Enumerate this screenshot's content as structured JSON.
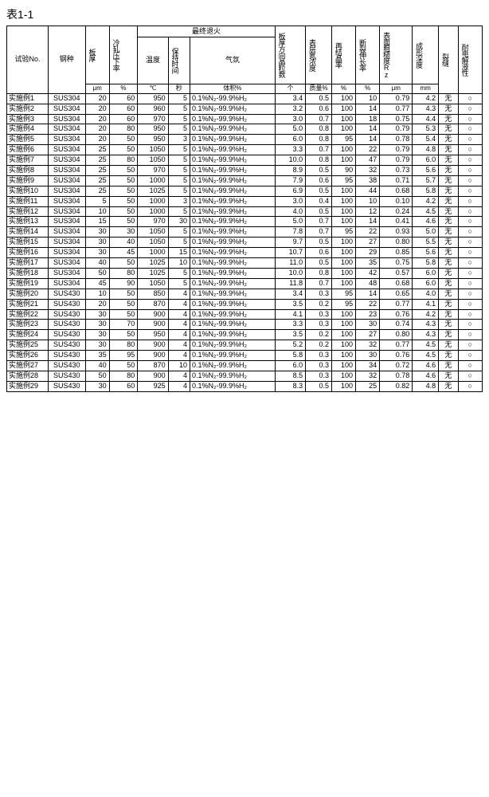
{
  "table_title": "表1-1",
  "headers": {
    "no": "试验No.",
    "steel": "钢种",
    "thickness": "板厚",
    "cold_reduction": "冷轧压下率",
    "final_anneal": "最终退火",
    "temp": "温度",
    "hold_time": "保持时间",
    "atmosphere": "气氛",
    "grain_num": "板厚方向晶粒数",
    "n_conc": "表层氮浓度",
    "recrys": "再结晶率",
    "elong": "断裂伸长率",
    "roughness": "表面粗糙度Rz",
    "form_depth": "成形深度",
    "crack": "裂缝",
    "electrolytic": "耐电解液性"
  },
  "units": {
    "thickness": "μm",
    "cold_reduction": "%",
    "temp": "℃",
    "hold_time": "秒",
    "atmosphere": "体积%",
    "grain_num": "个",
    "n_conc": "质量%",
    "recrys": "%",
    "elong": "%",
    "roughness": "μm",
    "form_depth": "mm"
  },
  "rows": [
    {
      "no": "实施例1",
      "steel": "SUS304",
      "thk": "20",
      "cr": "60",
      "temp": "950",
      "time": "5",
      "atm": "0.1%N₂-99.9%H₂",
      "gn": "3.4",
      "nc": "0.5",
      "rc": "100",
      "el": "10",
      "rz": "0.79",
      "fd": "4.2",
      "crk": "无",
      "elc": "○"
    },
    {
      "no": "实施例2",
      "steel": "SUS304",
      "thk": "20",
      "cr": "60",
      "temp": "960",
      "time": "5",
      "atm": "0.1%N₂-99.9%H₂",
      "gn": "3.2",
      "nc": "0.6",
      "rc": "100",
      "el": "14",
      "rz": "0.77",
      "fd": "4.3",
      "crk": "无",
      "elc": "○"
    },
    {
      "no": "实施例3",
      "steel": "SUS304",
      "thk": "20",
      "cr": "60",
      "temp": "970",
      "time": "5",
      "atm": "0.1%N₂-99.9%H₂",
      "gn": "3.0",
      "nc": "0.7",
      "rc": "100",
      "el": "18",
      "rz": "0.75",
      "fd": "4.4",
      "crk": "无",
      "elc": "○"
    },
    {
      "no": "实施例4",
      "steel": "SUS304",
      "thk": "20",
      "cr": "80",
      "temp": "950",
      "time": "5",
      "atm": "0.1%N₂-99.9%H₂",
      "gn": "5.0",
      "nc": "0.8",
      "rc": "100",
      "el": "14",
      "rz": "0.79",
      "fd": "5.3",
      "crk": "无",
      "elc": "○"
    },
    {
      "no": "实施例5",
      "steel": "SUS304",
      "thk": "20",
      "cr": "50",
      "temp": "950",
      "time": "3",
      "atm": "0.1%N₂-99.9%H₂",
      "gn": "6.0",
      "nc": "0.8",
      "rc": "95",
      "el": "14",
      "rz": "0.78",
      "fd": "5.4",
      "crk": "无",
      "elc": "○"
    },
    {
      "no": "实施例6",
      "steel": "SUS304",
      "thk": "25",
      "cr": "50",
      "temp": "1050",
      "time": "5",
      "atm": "0.1%N₂-99.9%H₂",
      "gn": "3.3",
      "nc": "0.7",
      "rc": "100",
      "el": "22",
      "rz": "0.79",
      "fd": "4.8",
      "crk": "无",
      "elc": "○"
    },
    {
      "no": "实施例7",
      "steel": "SUS304",
      "thk": "25",
      "cr": "80",
      "temp": "1050",
      "time": "5",
      "atm": "0.1%N₂-99.9%H₂",
      "gn": "10.0",
      "nc": "0.8",
      "rc": "100",
      "el": "47",
      "rz": "0.79",
      "fd": "6.0",
      "crk": "无",
      "elc": "○"
    },
    {
      "no": "实施例8",
      "steel": "SUS304",
      "thk": "25",
      "cr": "50",
      "temp": "970",
      "time": "5",
      "atm": "0.1%N₂-99.9%H₂",
      "gn": "8.9",
      "nc": "0.5",
      "rc": "90",
      "el": "32",
      "rz": "0.73",
      "fd": "5.6",
      "crk": "无",
      "elc": "○"
    },
    {
      "no": "实施例9",
      "steel": "SUS304",
      "thk": "25",
      "cr": "50",
      "temp": "1000",
      "time": "5",
      "atm": "0.1%N₂-99.9%H₂",
      "gn": "7.9",
      "nc": "0.6",
      "rc": "95",
      "el": "38",
      "rz": "0.71",
      "fd": "5.7",
      "crk": "无",
      "elc": "○"
    },
    {
      "no": "实施例10",
      "steel": "SUS304",
      "thk": "25",
      "cr": "50",
      "temp": "1025",
      "time": "5",
      "atm": "0.1%N₂-99.9%H₂",
      "gn": "6.9",
      "nc": "0.5",
      "rc": "100",
      "el": "44",
      "rz": "0.68",
      "fd": "5.8",
      "crk": "无",
      "elc": "○"
    },
    {
      "no": "实施例11",
      "steel": "SUS304",
      "thk": "5",
      "cr": "50",
      "temp": "1000",
      "time": "3",
      "atm": "0.1%N₂-99.9%H₂",
      "gn": "3.0",
      "nc": "0.4",
      "rc": "100",
      "el": "10",
      "rz": "0.10",
      "fd": "4.2",
      "crk": "无",
      "elc": "○"
    },
    {
      "no": "实施例12",
      "steel": "SUS304",
      "thk": "10",
      "cr": "50",
      "temp": "1000",
      "time": "5",
      "atm": "0.1%N₂-99.9%H₂",
      "gn": "4.0",
      "nc": "0.5",
      "rc": "100",
      "el": "12",
      "rz": "0.24",
      "fd": "4.5",
      "crk": "无",
      "elc": "○"
    },
    {
      "no": "实施例13",
      "steel": "SUS304",
      "thk": "15",
      "cr": "50",
      "temp": "970",
      "time": "30",
      "atm": "0.1%N₂-99.9%H₂",
      "gn": "5.0",
      "nc": "0.7",
      "rc": "100",
      "el": "14",
      "rz": "0.41",
      "fd": "4.6",
      "crk": "无",
      "elc": "○"
    },
    {
      "no": "实施例14",
      "steel": "SUS304",
      "thk": "30",
      "cr": "30",
      "temp": "1050",
      "time": "5",
      "atm": "0.1%N₂-99.9%H₂",
      "gn": "7.8",
      "nc": "0.7",
      "rc": "95",
      "el": "22",
      "rz": "0.93",
      "fd": "5.0",
      "crk": "无",
      "elc": "○"
    },
    {
      "no": "实施例15",
      "steel": "SUS304",
      "thk": "30",
      "cr": "40",
      "temp": "1050",
      "time": "5",
      "atm": "0.1%N₂-99.9%H₂",
      "gn": "9.7",
      "nc": "0.5",
      "rc": "100",
      "el": "27",
      "rz": "0.80",
      "fd": "5.5",
      "crk": "无",
      "elc": "○"
    },
    {
      "no": "实施例16",
      "steel": "SUS304",
      "thk": "30",
      "cr": "45",
      "temp": "1000",
      "time": "15",
      "atm": "0.1%N₂-99.9%H₂",
      "gn": "10.7",
      "nc": "0.6",
      "rc": "100",
      "el": "29",
      "rz": "0.85",
      "fd": "5.6",
      "crk": "无",
      "elc": "○"
    },
    {
      "no": "实施例17",
      "steel": "SUS304",
      "thk": "40",
      "cr": "50",
      "temp": "1025",
      "time": "10",
      "atm": "0.1%N₂-99.9%H₂",
      "gn": "11.0",
      "nc": "0.5",
      "rc": "100",
      "el": "35",
      "rz": "0.75",
      "fd": "5.8",
      "crk": "无",
      "elc": "○"
    },
    {
      "no": "实施例18",
      "steel": "SUS304",
      "thk": "50",
      "cr": "80",
      "temp": "1025",
      "time": "5",
      "atm": "0.1%N₂-99.9%H₂",
      "gn": "10.0",
      "nc": "0.8",
      "rc": "100",
      "el": "42",
      "rz": "0.57",
      "fd": "6.0",
      "crk": "无",
      "elc": "○"
    },
    {
      "no": "实施例19",
      "steel": "SUS304",
      "thk": "45",
      "cr": "90",
      "temp": "1050",
      "time": "5",
      "atm": "0.1%N₂-99.9%H₂",
      "gn": "11.8",
      "nc": "0.7",
      "rc": "100",
      "el": "48",
      "rz": "0.68",
      "fd": "6.0",
      "crk": "无",
      "elc": "○"
    },
    {
      "no": "实施例20",
      "steel": "SUS430",
      "thk": "10",
      "cr": "50",
      "temp": "850",
      "time": "4",
      "atm": "0.1%N₂-99.9%H₂",
      "gn": "3.4",
      "nc": "0.3",
      "rc": "95",
      "el": "14",
      "rz": "0.65",
      "fd": "4.0",
      "crk": "无",
      "elc": "○"
    },
    {
      "no": "实施例21",
      "steel": "SUS430",
      "thk": "20",
      "cr": "50",
      "temp": "870",
      "time": "4",
      "atm": "0.1%N₂-99.9%H₂",
      "gn": "3.5",
      "nc": "0.2",
      "rc": "95",
      "el": "22",
      "rz": "0.77",
      "fd": "4.1",
      "crk": "无",
      "elc": "○"
    },
    {
      "no": "实施例22",
      "steel": "SUS430",
      "thk": "30",
      "cr": "50",
      "temp": "900",
      "time": "4",
      "atm": "0.1%N₂-99.9%H₂",
      "gn": "4.1",
      "nc": "0.3",
      "rc": "100",
      "el": "23",
      "rz": "0.76",
      "fd": "4.2",
      "crk": "无",
      "elc": "○"
    },
    {
      "no": "实施例23",
      "steel": "SUS430",
      "thk": "30",
      "cr": "70",
      "temp": "900",
      "time": "4",
      "atm": "0.1%N₂-99.9%H₂",
      "gn": "3.3",
      "nc": "0.3",
      "rc": "100",
      "el": "30",
      "rz": "0.74",
      "fd": "4.3",
      "crk": "无",
      "elc": "○"
    },
    {
      "no": "实施例24",
      "steel": "SUS430",
      "thk": "30",
      "cr": "50",
      "temp": "950",
      "time": "4",
      "atm": "0.1%N₂-99.9%H₂",
      "gn": "3.5",
      "nc": "0.2",
      "rc": "100",
      "el": "27",
      "rz": "0.80",
      "fd": "4.3",
      "crk": "无",
      "elc": "○"
    },
    {
      "no": "实施例25",
      "steel": "SUS430",
      "thk": "30",
      "cr": "80",
      "temp": "900",
      "time": "4",
      "atm": "0.1%N₂-99.9%H₂",
      "gn": "5.2",
      "nc": "0.2",
      "rc": "100",
      "el": "32",
      "rz": "0.77",
      "fd": "4.5",
      "crk": "无",
      "elc": "○"
    },
    {
      "no": "实施例26",
      "steel": "SUS430",
      "thk": "35",
      "cr": "95",
      "temp": "900",
      "time": "4",
      "atm": "0.1%N₂-99.9%H₂",
      "gn": "5.8",
      "nc": "0.3",
      "rc": "100",
      "el": "30",
      "rz": "0.76",
      "fd": "4.5",
      "crk": "无",
      "elc": "○"
    },
    {
      "no": "实施例27",
      "steel": "SUS430",
      "thk": "40",
      "cr": "50",
      "temp": "870",
      "time": "10",
      "atm": "0.1%N₂-99.9%H₂",
      "gn": "6.0",
      "nc": "0.3",
      "rc": "100",
      "el": "34",
      "rz": "0.72",
      "fd": "4.6",
      "crk": "无",
      "elc": "○"
    },
    {
      "no": "实施例28",
      "steel": "SUS430",
      "thk": "50",
      "cr": "80",
      "temp": "900",
      "time": "4",
      "atm": "0.1%N₂-99.9%H₂",
      "gn": "8.5",
      "nc": "0.3",
      "rc": "100",
      "el": "32",
      "rz": "0.78",
      "fd": "4.6",
      "crk": "无",
      "elc": "○"
    },
    {
      "no": "实施例29",
      "steel": "SUS430",
      "thk": "30",
      "cr": "60",
      "temp": "925",
      "time": "4",
      "atm": "0.1%N₂-99.9%H₂",
      "gn": "8.3",
      "nc": "0.5",
      "rc": "100",
      "el": "25",
      "rz": "0.82",
      "fd": "4.8",
      "crk": "无",
      "elc": "○"
    }
  ]
}
